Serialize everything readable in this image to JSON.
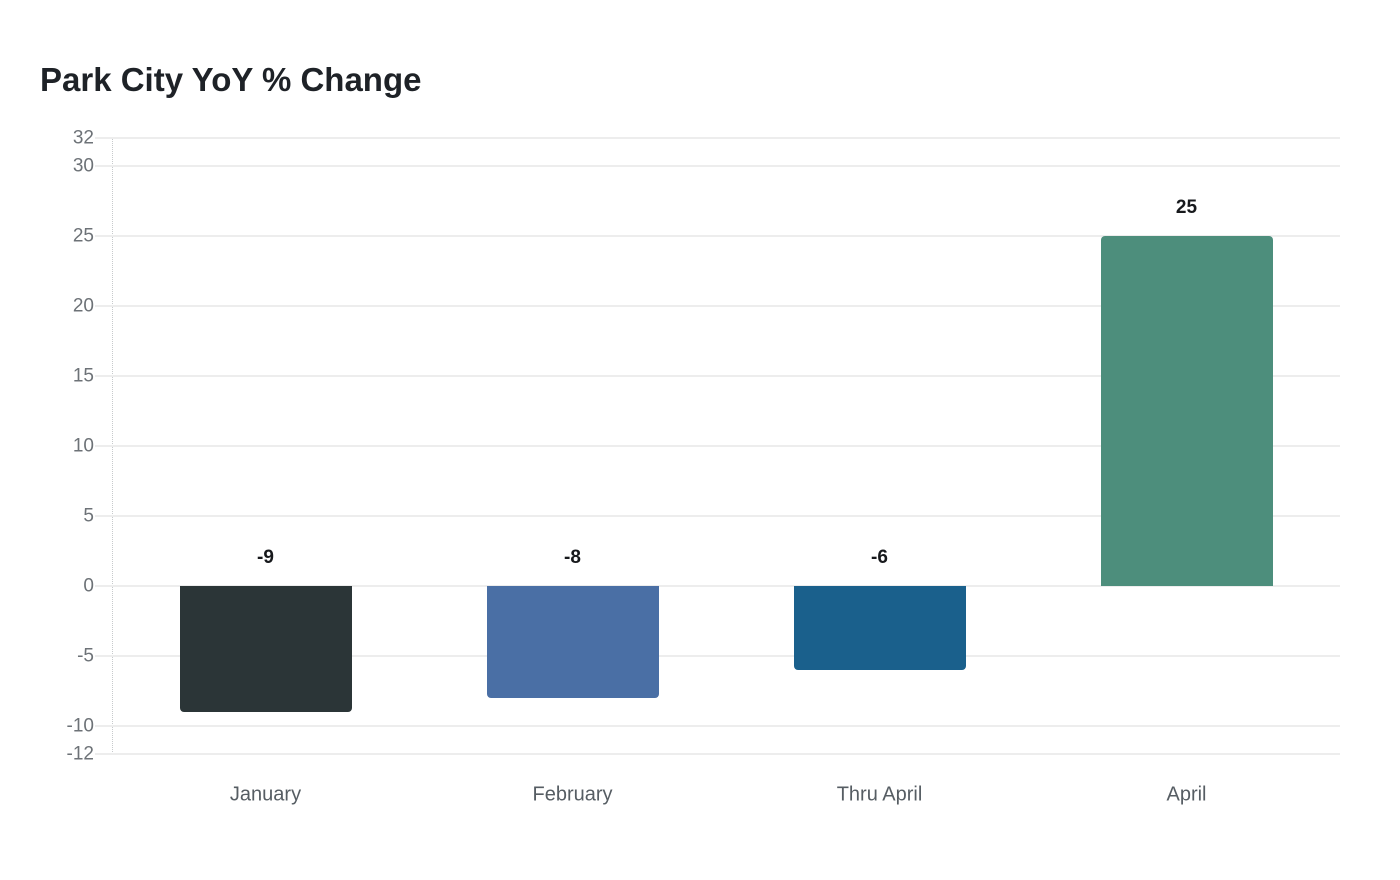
{
  "chart_data": {
    "type": "bar",
    "title": "Park City YoY % Change",
    "categories": [
      "January",
      "February",
      "Thru April",
      "April"
    ],
    "values": [
      -9,
      -8,
      -6,
      25
    ],
    "value_labels": [
      "-9",
      "-8",
      "-6",
      "25"
    ],
    "bar_colors": [
      "#2b3537",
      "#4a6fa5",
      "#1a608c",
      "#4d8e7c"
    ],
    "y_ticks": [
      32,
      30,
      25,
      20,
      15,
      10,
      5,
      0,
      -5,
      -10,
      -12
    ],
    "ylim": [
      -12,
      32
    ],
    "xlabel": "",
    "ylabel": "",
    "grid": true,
    "legend_position": "none",
    "colors": {
      "background": "#ffffff",
      "gridline": "#ededed",
      "axis_dotted_line": "#c7cacc",
      "tick_label": "#6d7277",
      "x_label": "#565d63",
      "value_label": "#17191c",
      "title": "#1e2227"
    }
  }
}
